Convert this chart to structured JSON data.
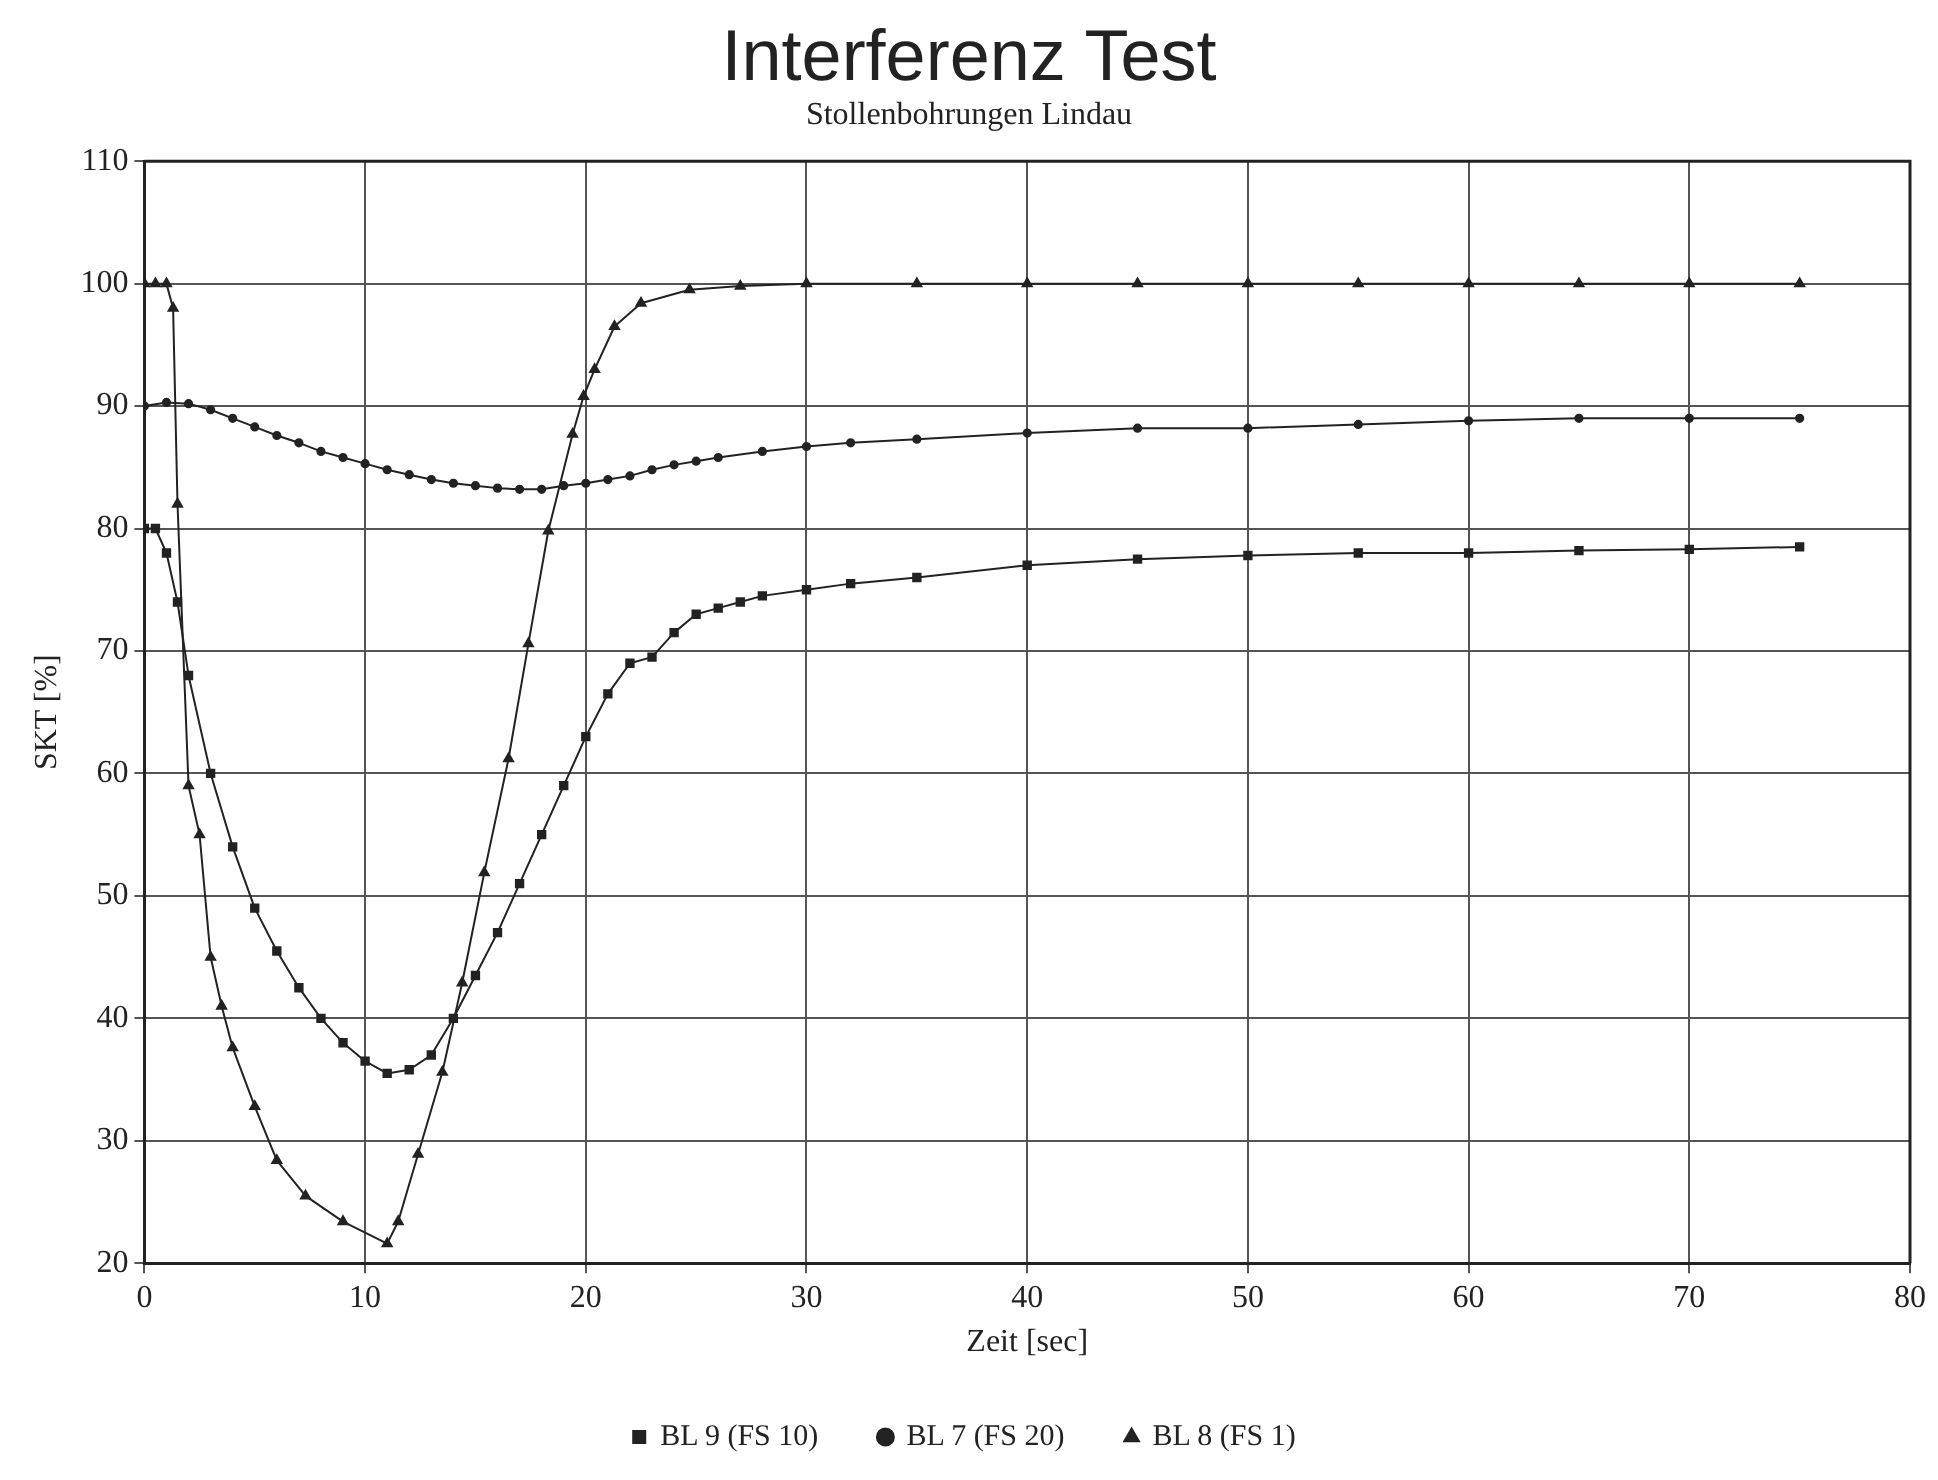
{
  "chart_data": {
    "type": "line",
    "title": "Interferenz Test",
    "subtitle": "Stollenbohrungen Lindau",
    "xlabel": "Zeit [sec]",
    "ylabel": "SKT [%]",
    "xlim": [
      0,
      80
    ],
    "xticks": [
      0,
      10,
      20,
      30,
      40,
      50,
      60,
      70,
      80
    ],
    "ylim": [
      20,
      110
    ],
    "yticks": [
      20,
      30,
      40,
      50,
      60,
      70,
      80,
      90,
      100,
      110
    ],
    "grid": true,
    "legend": "bottom",
    "line_style": "solid",
    "series": [
      {
        "name": "BL 9 (FS 10)",
        "color": "#222222",
        "marker": "square",
        "x": [
          0,
          0.5,
          1,
          1.5,
          2,
          3,
          4,
          5,
          6,
          7,
          8,
          9,
          10,
          11,
          12,
          13,
          14,
          15,
          16,
          17,
          18,
          19,
          20,
          21,
          22,
          23,
          24,
          25,
          26,
          27,
          28,
          30,
          32,
          35,
          40,
          45,
          50,
          55,
          60,
          65,
          70,
          75
        ],
        "values": [
          80,
          80,
          78,
          74,
          68,
          60,
          54,
          49,
          45.5,
          42.5,
          40,
          38,
          36.5,
          35.5,
          35.8,
          37,
          40,
          43.5,
          47,
          51,
          55,
          59,
          63,
          66.5,
          69,
          69.5,
          71.5,
          73,
          73.5,
          74,
          74.5,
          75,
          75.5,
          76,
          77,
          77.5,
          77.8,
          78,
          78,
          78.2,
          78.3,
          78.5
        ]
      },
      {
        "name": "BL 7 (FS 20)",
        "color": "#222222",
        "marker": "circle",
        "x": [
          0,
          1,
          2,
          3,
          4,
          5,
          6,
          7,
          8,
          9,
          10,
          11,
          12,
          13,
          14,
          15,
          16,
          17,
          18,
          19,
          20,
          21,
          22,
          23,
          24,
          25,
          26,
          28,
          30,
          32,
          35,
          40,
          45,
          50,
          55,
          60,
          65,
          70,
          75
        ],
        "values": [
          90,
          90.3,
          90.2,
          89.7,
          89,
          88.3,
          87.6,
          87,
          86.3,
          85.8,
          85.3,
          84.8,
          84.4,
          84,
          83.7,
          83.5,
          83.3,
          83.2,
          83.2,
          83.5,
          83.7,
          84,
          84.3,
          84.8,
          85.2,
          85.5,
          85.8,
          86.3,
          86.7,
          87,
          87.3,
          87.8,
          88.2,
          88.2,
          88.5,
          88.8,
          89,
          89,
          89
        ]
      },
      {
        "name": "BL 8 (FS 1)",
        "color": "#222222",
        "marker": "triangle",
        "x": [
          0,
          0.5,
          1,
          1.3,
          1.5,
          2,
          2.5,
          3,
          3.5,
          4,
          5,
          6,
          7.3,
          9,
          11,
          11.5,
          12.4,
          13.5,
          14.4,
          15.4,
          16.5,
          17.4,
          18.3,
          19.4,
          19.9,
          20.4,
          21.3,
          22.5,
          24.7,
          27,
          30,
          35,
          40,
          45,
          50,
          55,
          60,
          65,
          70,
          75
        ],
        "values": [
          100,
          100,
          100,
          98,
          82,
          59,
          55,
          45,
          41,
          37.6,
          32.8,
          28.4,
          25.5,
          23.4,
          21.6,
          23.4,
          28.9,
          35.6,
          42.9,
          51.9,
          61.2,
          70.6,
          79.8,
          87.7,
          90.8,
          93,
          96.5,
          98.4,
          99.5,
          99.8,
          100,
          100,
          100,
          100,
          100,
          100,
          100,
          100,
          100,
          100
        ]
      }
    ]
  }
}
